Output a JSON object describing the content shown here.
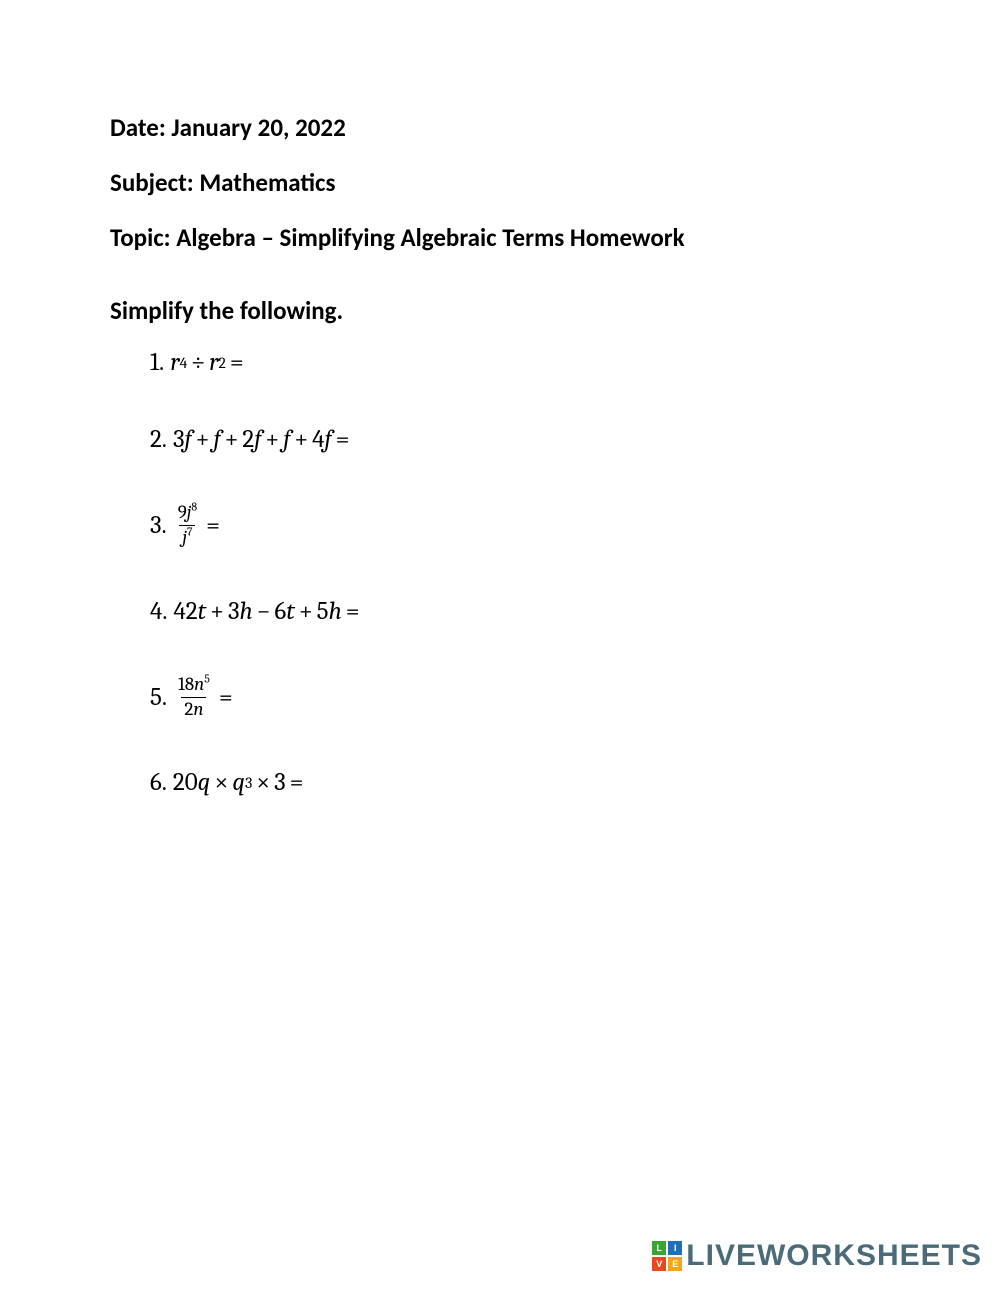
{
  "header": {
    "date_label": "Date:",
    "date_value": "January 20, 2022",
    "subject_label": "Subject:",
    "subject_value": "Mathematics",
    "topic_label": "Topic:",
    "topic_value": "Algebra – Simplifying Algebraic Terms Homework"
  },
  "instruction": "Simplify the following.",
  "problems": {
    "p1": {
      "num": "1.",
      "var": "r",
      "exp1": "4",
      "op": "÷",
      "exp2": "2",
      "eq": "="
    },
    "p2": {
      "num": "2.",
      "t1": "3",
      "t2": "2",
      "t3": "4",
      "var": "f",
      "plus": "+",
      "eq": "="
    },
    "p3": {
      "num": "3.",
      "coef": "9",
      "var": "j",
      "exp_top": "8",
      "exp_bot": "7",
      "eq": "="
    },
    "p4": {
      "num": "4.",
      "c1": "42",
      "v1": "t",
      "c2": "3",
      "v2": "h",
      "c3": "6",
      "c4": "5",
      "plus": "+",
      "minus": "−",
      "eq": "="
    },
    "p5": {
      "num": "5.",
      "ctop": "18",
      "vtop": "n",
      "etop": "5",
      "cbot": "2",
      "vbot": "n",
      "eq": "="
    },
    "p6": {
      "num": "6.",
      "c1": "20",
      "var": "q",
      "times": "×",
      "exp": "3",
      "c2": "3",
      "eq": "="
    }
  },
  "watermark": {
    "b1": "L",
    "b2": "I",
    "b3": "V",
    "b4": "E",
    "text": "LIVEWORKSHEETS",
    "colors": {
      "b1": "#3aa535",
      "b2": "#1e6fb8",
      "b3": "#e8471f",
      "b4": "#f2a61e",
      "text": "#4b6b7a"
    }
  },
  "style": {
    "page_bg": "#ffffff",
    "text_color": "#000000",
    "header_fontsize": 25,
    "header_fontweight": 700,
    "problem_fontsize": 25,
    "frac_fontsize": 19,
    "watermark_fontsize": 30
  }
}
